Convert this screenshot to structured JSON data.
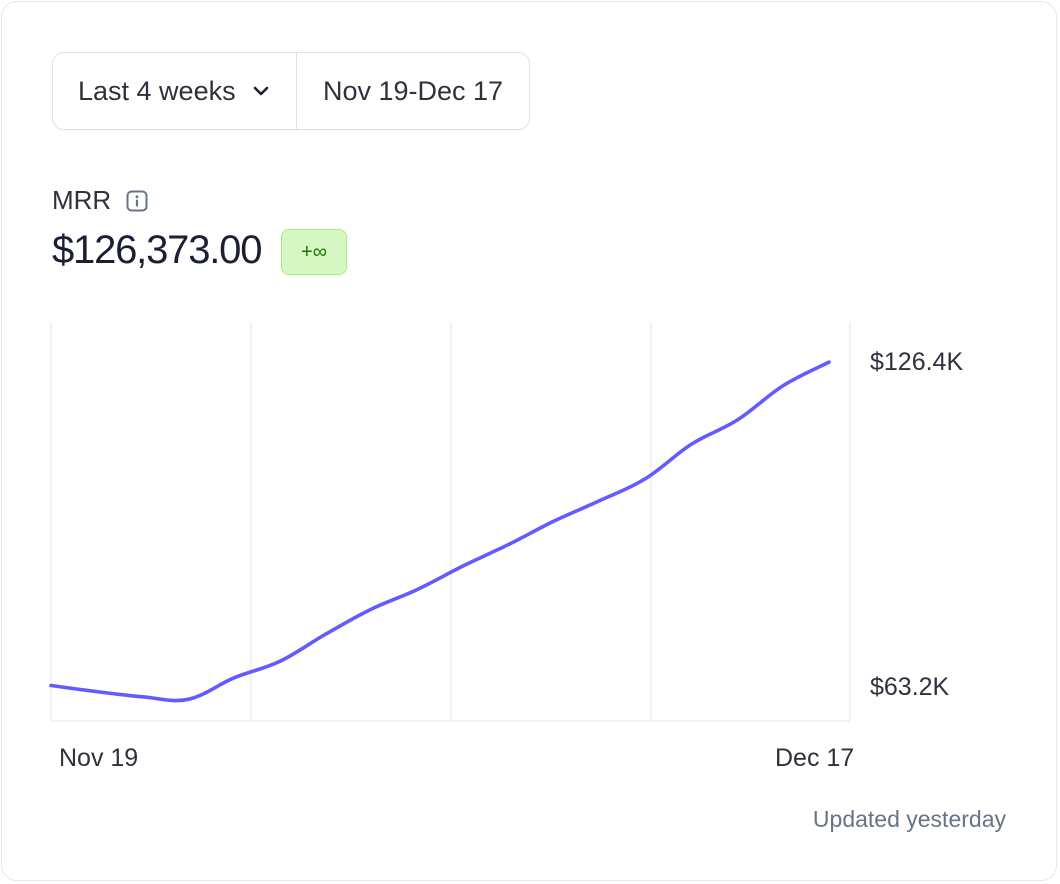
{
  "controls": {
    "range_label": "Last 4 weeks",
    "date_range": "Nov 19-Dec 17"
  },
  "metric": {
    "label": "MRR",
    "value": "$126,373.00",
    "change_badge": "+∞"
  },
  "chart_data": {
    "type": "line",
    "x_labels": [
      "Nov 19",
      "Dec 17"
    ],
    "y_tick_labels": [
      "$126.4K",
      "$63.2K"
    ],
    "series": [
      {
        "values": [
          63300,
          62100,
          61100,
          60600,
          64800,
          68000,
          73300,
          78200,
          82000,
          86600,
          90800,
          95400,
          99400,
          103700,
          110400,
          115100,
          121800,
          126373
        ]
      }
    ],
    "ylim": [
      60000,
      130000
    ],
    "grid": "vertical",
    "line_color": "#635bff"
  },
  "footer": {
    "updated_text": "Updated yesterday"
  },
  "colors": {
    "accent": "#635bff",
    "badge_bg": "#d7f7c2",
    "badge_text": "#217005"
  }
}
